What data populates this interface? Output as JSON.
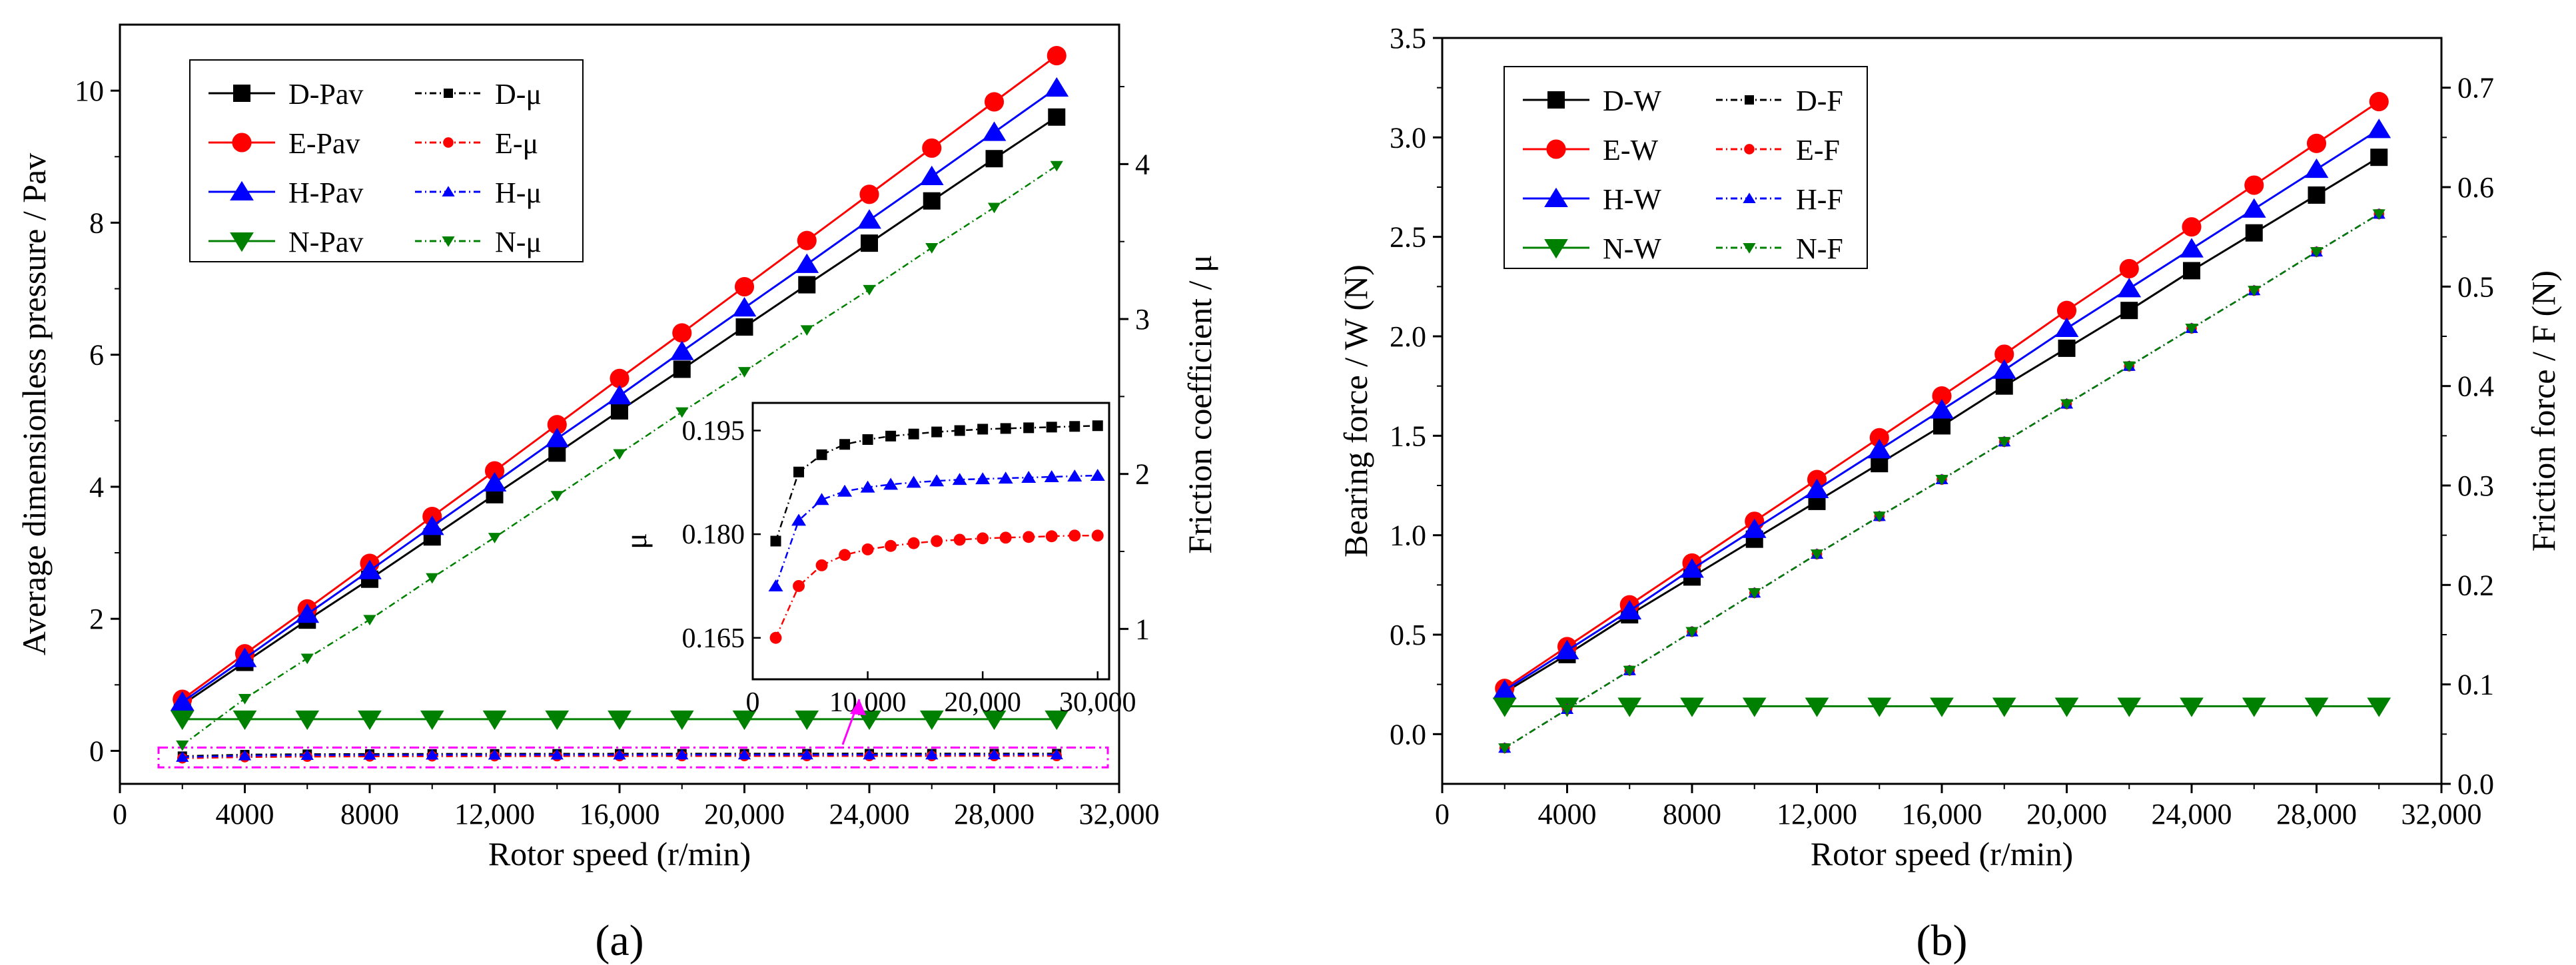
{
  "chart_data": [
    {
      "id": "a",
      "type": "line",
      "panel_label": "(a)",
      "xlabel": "Rotor speed (r/min)",
      "ylabel_left": "Average dimensionless pressure / Pav",
      "ylabel_right": "Friction coefficient / μ",
      "xlim": [
        0,
        32000
      ],
      "ylim_left": [
        -0.5,
        11
      ],
      "ylim_right": [
        0,
        4.9
      ],
      "xticks": [
        0,
        4000,
        8000,
        12000,
        16000,
        20000,
        24000,
        28000,
        32000
      ],
      "xtick_labels": [
        "0",
        "4000",
        "8000",
        "12,000",
        "16,000",
        "20,000",
        "24,000",
        "28,000",
        "32,000"
      ],
      "yticks_left": [
        0,
        2,
        4,
        6,
        8,
        10
      ],
      "ytick_labels_left": [
        "0",
        "2",
        "4",
        "6",
        "8",
        "10"
      ],
      "yticks_right": [
        1,
        2,
        3,
        4
      ],
      "ytick_labels_right": [
        "1",
        "2",
        "3",
        "4"
      ],
      "x": [
        2000,
        4000,
        6000,
        8000,
        10000,
        12000,
        14000,
        16000,
        18000,
        20000,
        22000,
        24000,
        26000,
        28000,
        30000
      ],
      "series": [
        {
          "name": "D-Pav",
          "axis": "left",
          "color": "#000000",
          "marker": "square",
          "dash": "solid",
          "values": [
            0.7,
            1.34,
            1.98,
            2.6,
            3.24,
            3.88,
            4.51,
            5.15,
            5.78,
            6.42,
            7.06,
            7.69,
            8.33,
            8.97,
            9.6
          ]
        },
        {
          "name": "E-Pav",
          "axis": "left",
          "color": "#ff0000",
          "marker": "circle",
          "dash": "solid",
          "values": [
            0.78,
            1.47,
            2.15,
            2.84,
            3.55,
            4.24,
            4.94,
            5.64,
            6.33,
            7.03,
            7.73,
            8.43,
            9.13,
            9.83,
            10.53
          ]
        },
        {
          "name": "H-Pav",
          "axis": "left",
          "color": "#0000ff",
          "marker": "triangle-up",
          "dash": "solid",
          "values": [
            0.74,
            1.4,
            2.07,
            2.73,
            3.4,
            4.06,
            4.73,
            5.38,
            6.05,
            6.71,
            7.37,
            8.04,
            8.7,
            9.37,
            10.04
          ]
        },
        {
          "name": "N-Pav",
          "axis": "left",
          "color": "#008000",
          "marker": "triangle-down",
          "dash": "solid",
          "values": [
            0.48,
            0.48,
            0.48,
            0.48,
            0.48,
            0.48,
            0.48,
            0.48,
            0.48,
            0.48,
            0.48,
            0.48,
            0.48,
            0.48,
            0.48
          ]
        },
        {
          "name": "D-μ",
          "axis": "right",
          "color": "#000000",
          "marker": "square-small",
          "dash": "dashdot",
          "values": [
            0.179,
            0.189,
            0.1915,
            0.193,
            0.1937,
            0.1942,
            0.1945,
            0.1948,
            0.195,
            0.1952,
            0.1953,
            0.1954,
            0.1955,
            0.1956,
            0.1957
          ]
        },
        {
          "name": "E-μ",
          "axis": "right",
          "color": "#ff0000",
          "marker": "circle-small",
          "dash": "dashdot",
          "values": [
            0.165,
            0.1725,
            0.1755,
            0.177,
            0.1778,
            0.1783,
            0.1787,
            0.179,
            0.1792,
            0.1794,
            0.1795,
            0.1796,
            0.1797,
            0.1798,
            0.1798
          ]
        },
        {
          "name": "H-μ",
          "axis": "right",
          "color": "#0000ff",
          "marker": "triangle-up-small",
          "dash": "dashdot",
          "values": [
            0.1725,
            0.182,
            0.185,
            0.1862,
            0.1868,
            0.1872,
            0.1875,
            0.1877,
            0.1879,
            0.188,
            0.1881,
            0.1882,
            0.1883,
            0.1884,
            0.1885
          ]
        },
        {
          "name": "N-μ",
          "axis": "right",
          "color": "#008000",
          "marker": "triangle-down-small",
          "dash": "dashdot",
          "values": [
            0.25,
            0.55,
            0.81,
            1.06,
            1.33,
            1.59,
            1.86,
            2.13,
            2.4,
            2.66,
            2.93,
            3.19,
            3.46,
            3.72,
            3.99
          ]
        }
      ],
      "legend": {
        "position": "top-left",
        "columns": [
          [
            "D-Pav",
            "E-Pav",
            "H-Pav",
            "N-Pav"
          ],
          [
            "D-μ",
            "E-μ",
            "H-μ",
            "N-μ"
          ]
        ]
      },
      "inset": {
        "ylabel": "μ",
        "xlim": [
          0,
          31000
        ],
        "ylim": [
          0.159,
          0.199
        ],
        "xticks": [
          0,
          10000,
          20000,
          30000
        ],
        "xtick_labels": [
          "0",
          "10,000",
          "20,000",
          "30,000"
        ],
        "yticks": [
          0.165,
          0.18,
          0.195
        ],
        "ytick_labels": [
          "0.165",
          "0.180",
          "0.195"
        ],
        "series": [
          "D-μ",
          "E-μ",
          "H-μ"
        ]
      },
      "highlight": {
        "color": "#ff00ff",
        "x_range": [
          0,
          32000
        ],
        "y_range": [
          -0.25,
          0.05
        ]
      }
    },
    {
      "id": "b",
      "type": "line",
      "panel_label": "(b)",
      "xlabel": "Rotor speed (r/min)",
      "ylabel_left": "Bearing force / W (N)",
      "ylabel_right": "Friction force / F (N)",
      "xlim": [
        0,
        32000
      ],
      "ylim_left": [
        -0.25,
        3.5
      ],
      "ylim_right": [
        0,
        0.75
      ],
      "xticks": [
        0,
        4000,
        8000,
        12000,
        16000,
        20000,
        24000,
        28000,
        32000
      ],
      "xtick_labels": [
        "0",
        "4000",
        "8000",
        "12,000",
        "16,000",
        "20,000",
        "24,000",
        "28,000",
        "32,000"
      ],
      "yticks_left": [
        0,
        0.5,
        1.0,
        1.5,
        2.0,
        2.5,
        3.0,
        3.5
      ],
      "ytick_labels_left": [
        "0.0",
        "0.5",
        "1.0",
        "1.5",
        "2.0",
        "2.5",
        "3.0",
        "3.5"
      ],
      "yticks_right": [
        0,
        0.1,
        0.2,
        0.3,
        0.4,
        0.5,
        0.6,
        0.7
      ],
      "ytick_labels_right": [
        "0.0",
        "0.1",
        "0.2",
        "0.3",
        "0.4",
        "0.5",
        "0.6",
        "0.7"
      ],
      "x": [
        2000,
        4000,
        6000,
        8000,
        10000,
        12000,
        14000,
        16000,
        18000,
        20000,
        22000,
        24000,
        26000,
        28000,
        30000
      ],
      "series": [
        {
          "name": "D-W",
          "axis": "left",
          "color": "#000000",
          "marker": "square",
          "dash": "solid",
          "values": [
            0.21,
            0.4,
            0.6,
            0.79,
            0.98,
            1.17,
            1.36,
            1.55,
            1.75,
            1.94,
            2.13,
            2.33,
            2.52,
            2.71,
            2.9
          ]
        },
        {
          "name": "E-W",
          "axis": "left",
          "color": "#ff0000",
          "marker": "circle",
          "dash": "solid",
          "values": [
            0.23,
            0.44,
            0.65,
            0.86,
            1.07,
            1.28,
            1.49,
            1.7,
            1.91,
            2.13,
            2.34,
            2.55,
            2.76,
            2.97,
            3.18
          ]
        },
        {
          "name": "H-W",
          "axis": "left",
          "color": "#0000ff",
          "marker": "triangle-up",
          "dash": "solid",
          "values": [
            0.22,
            0.42,
            0.62,
            0.83,
            1.03,
            1.23,
            1.43,
            1.63,
            1.83,
            2.04,
            2.24,
            2.44,
            2.64,
            2.84,
            3.04
          ]
        },
        {
          "name": "N-W",
          "axis": "left",
          "color": "#008000",
          "marker": "triangle-down",
          "dash": "solid",
          "values": [
            0.14,
            0.14,
            0.14,
            0.14,
            0.14,
            0.14,
            0.14,
            0.14,
            0.14,
            0.14,
            0.14,
            0.14,
            0.14,
            0.14,
            0.14
          ]
        },
        {
          "name": "D-F",
          "axis": "right",
          "color": "#000000",
          "marker": "square-small",
          "dash": "dashdot",
          "values": [
            0.036,
            0.075,
            0.114,
            0.153,
            0.192,
            0.231,
            0.269,
            0.306,
            0.344,
            0.382,
            0.42,
            0.458,
            0.496,
            0.535,
            0.573
          ]
        },
        {
          "name": "E-F",
          "axis": "right",
          "color": "#ff0000",
          "marker": "circle-small",
          "dash": "dashdot",
          "values": [
            0.036,
            0.075,
            0.114,
            0.153,
            0.192,
            0.231,
            0.269,
            0.306,
            0.344,
            0.382,
            0.42,
            0.458,
            0.496,
            0.535,
            0.573
          ]
        },
        {
          "name": "H-F",
          "axis": "right",
          "color": "#0000ff",
          "marker": "triangle-up-small",
          "dash": "dashdot",
          "values": [
            0.036,
            0.075,
            0.114,
            0.153,
            0.192,
            0.231,
            0.269,
            0.306,
            0.344,
            0.382,
            0.42,
            0.458,
            0.496,
            0.535,
            0.573
          ]
        },
        {
          "name": "N-F",
          "axis": "right",
          "color": "#008000",
          "marker": "triangle-down-small",
          "dash": "dashdot",
          "values": [
            0.036,
            0.075,
            0.114,
            0.153,
            0.192,
            0.231,
            0.269,
            0.306,
            0.344,
            0.382,
            0.42,
            0.458,
            0.496,
            0.535,
            0.573
          ]
        }
      ],
      "legend": {
        "position": "top-left",
        "columns": [
          [
            "D-W",
            "E-W",
            "H-W",
            "N-W"
          ],
          [
            "D-F",
            "E-F",
            "H-F",
            "N-F"
          ]
        ]
      }
    }
  ]
}
